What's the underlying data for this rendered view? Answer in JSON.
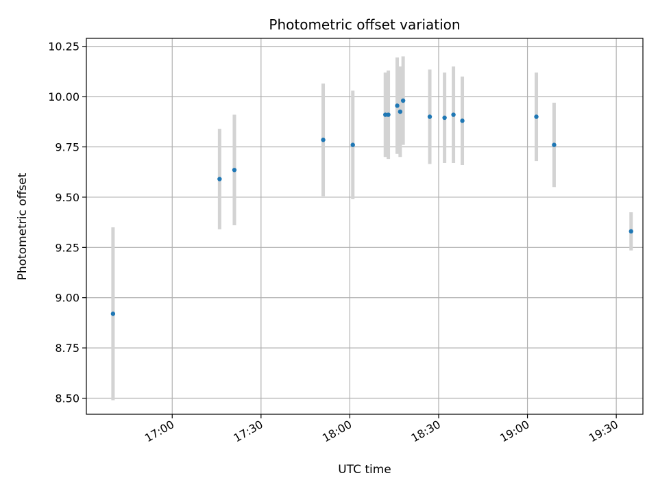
{
  "chart_data": {
    "type": "scatter",
    "title": "Photometric offset variation",
    "xlabel": "UTC time",
    "ylabel": "Photometric offset",
    "x_unit": "minutes since 16:00 UTC",
    "xlim": [
      "16:31",
      "19:39"
    ],
    "ylim": [
      8.42,
      10.29
    ],
    "x_ticks": [
      "17:00",
      "17:30",
      "18:00",
      "18:30",
      "19:00",
      "19:30"
    ],
    "y_ticks": [
      "8.50",
      "8.75",
      "9.00",
      "9.25",
      "9.50",
      "9.75",
      "10.00",
      "10.25"
    ],
    "grid": true,
    "colors": {
      "point": "#1f77b4",
      "errorbar": "#d3d3d3",
      "grid": "#b0b0b0"
    },
    "points": [
      {
        "time": "16:40",
        "y": 8.92,
        "err": 0.43
      },
      {
        "time": "17:16",
        "y": 9.59,
        "err": 0.25
      },
      {
        "time": "17:21",
        "y": 9.635,
        "err": 0.275
      },
      {
        "time": "17:51",
        "y": 9.785,
        "err": 0.28
      },
      {
        "time": "18:01",
        "y": 9.76,
        "err": 0.27
      },
      {
        "time": "18:12",
        "y": 9.91,
        "err": 0.21
      },
      {
        "time": "18:13",
        "y": 9.91,
        "err": 0.22
      },
      {
        "time": "18:16",
        "y": 9.955,
        "err": 0.24
      },
      {
        "time": "18:17",
        "y": 9.925,
        "err": 0.225
      },
      {
        "time": "18:18",
        "y": 9.98,
        "err": 0.22
      },
      {
        "time": "18:27",
        "y": 9.9,
        "err": 0.235
      },
      {
        "time": "18:32",
        "y": 9.895,
        "err": 0.225
      },
      {
        "time": "18:35",
        "y": 9.91,
        "err": 0.24
      },
      {
        "time": "18:38",
        "y": 9.88,
        "err": 0.22
      },
      {
        "time": "19:03",
        "y": 9.9,
        "err": 0.22
      },
      {
        "time": "19:09",
        "y": 9.76,
        "err": 0.21
      },
      {
        "time": "19:35",
        "y": 9.33,
        "err": 0.095
      }
    ]
  }
}
